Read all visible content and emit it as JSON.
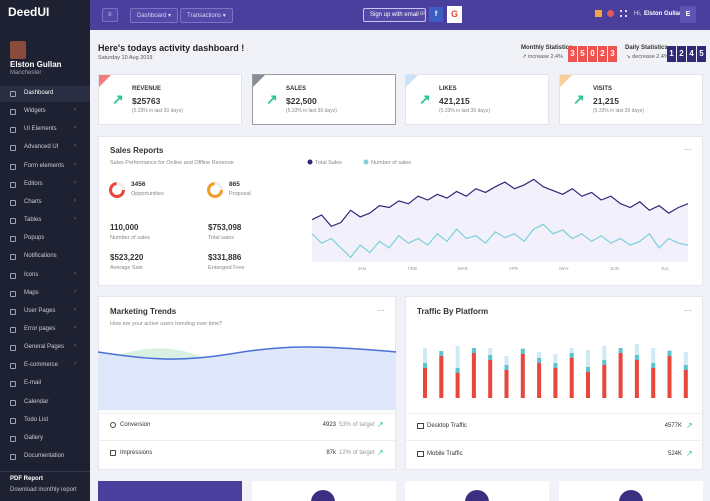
{
  "sidebar": {
    "brand": "DeedUI",
    "user": {
      "name": "Elston Gullan",
      "city": "Manchester"
    },
    "menu": [
      {
        "label": "Dashboard",
        "submenu": false
      },
      {
        "label": "Widgets",
        "submenu": true
      },
      {
        "label": "UI Elements",
        "submenu": true
      },
      {
        "label": "Advanced UI",
        "submenu": true
      },
      {
        "label": "Form elements",
        "submenu": true
      },
      {
        "label": "Editors",
        "submenu": true
      },
      {
        "label": "Charts",
        "submenu": true
      },
      {
        "label": "Tables",
        "submenu": true
      },
      {
        "label": "Popups",
        "submenu": false
      },
      {
        "label": "Notifications",
        "submenu": false
      },
      {
        "label": "Icons",
        "submenu": true
      },
      {
        "label": "Maps",
        "submenu": true
      },
      {
        "label": "User Pages",
        "submenu": true
      },
      {
        "label": "Error pages",
        "submenu": true
      },
      {
        "label": "General Pages",
        "submenu": true
      },
      {
        "label": "E-commerce",
        "submenu": true
      },
      {
        "label": "E-mail",
        "submenu": false
      },
      {
        "label": "Calendar",
        "submenu": false
      },
      {
        "label": "Todo List",
        "submenu": false
      },
      {
        "label": "Gallery",
        "submenu": false
      },
      {
        "label": "Documentation",
        "submenu": false
      }
    ],
    "footer": {
      "title": "PDF Report",
      "text": "Download monthly report"
    }
  },
  "topbar": {
    "menus": [
      "Dashboard",
      "Transactions"
    ],
    "signup": "Sign up with email",
    "or": "or",
    "facebook": "f",
    "google": "G",
    "greeting": "Hi,",
    "user": "Elston Gullan",
    "avatar": "E"
  },
  "header": {
    "title": "Here's todays activity dashboard !",
    "date": "Saturday 10 Aug 2019",
    "monthly": {
      "label": "Monthly Statistics",
      "change": "increase 2.4%",
      "digits": [
        3,
        5,
        0,
        2,
        3
      ]
    },
    "daily": {
      "label": "Daily Statistics",
      "change": "decrease 2.4%",
      "digits": [
        1,
        2,
        4,
        5
      ]
    }
  },
  "cards": [
    {
      "label": "REVENUE",
      "value": "$25763",
      "note": "(5.33% in last 30 days)",
      "color": "#f47c7c"
    },
    {
      "label": "SALES",
      "value": "$22,500",
      "note": "(5.33% in last 30 days)",
      "color": "#8a8d96"
    },
    {
      "label": "LIKES",
      "value": "421,215",
      "note": "(5.33% in last 30 days)",
      "color": "#c9e2f8"
    },
    {
      "label": "VISITS",
      "value": "21,215",
      "note": "(5.33% in last 30 days)",
      "color": "#f8cf95"
    }
  ],
  "sales_report": {
    "title": "Sales Reports",
    "subtitle": "Sales Performance for Online and Offline Revenue",
    "stats": [
      {
        "value": "3456",
        "label": "Opportunities"
      },
      {
        "value": "865",
        "label": "Proposal"
      },
      {
        "value": "110,000",
        "label": "Number of sales"
      },
      {
        "value": "$753,098",
        "label": "Total sales"
      },
      {
        "value": "$523,220",
        "label": "Average Sale"
      },
      {
        "value": "$331,886",
        "label": "Entanged Free"
      }
    ],
    "chart": {
      "categories": [
        "JAN",
        "FEB",
        "MAR",
        "APR",
        "MAY",
        "JUN",
        "JUL"
      ],
      "series": [
        {
          "name": "Total Sales",
          "color": "#2e2a78",
          "values": [
            45,
            50,
            38,
            42,
            55,
            48,
            52,
            60,
            58,
            65,
            62,
            70,
            66,
            72,
            68,
            75,
            70,
            78,
            74,
            80,
            85,
            78,
            82,
            88,
            80,
            76,
            72,
            78,
            70,
            74,
            66,
            70,
            62,
            58,
            64,
            55,
            60,
            52,
            58,
            62
          ]
        },
        {
          "name": "Number of sales",
          "color": "#7fd0d9",
          "values": [
            30,
            20,
            25,
            15,
            5,
            18,
            10,
            22,
            15,
            28,
            20,
            25,
            18,
            30,
            22,
            35,
            25,
            28,
            20,
            32,
            26,
            30,
            22,
            35,
            40,
            30,
            34,
            25,
            30,
            22,
            28,
            20,
            25,
            18,
            22,
            30,
            15,
            25,
            20,
            18
          ]
        }
      ]
    }
  },
  "marketing": {
    "title": "Marketing Trends",
    "subtitle": "How are your active users trending over time?",
    "rows": [
      {
        "label": "Conversion",
        "value": "4923",
        "target": "53% of target"
      },
      {
        "label": "Impressions",
        "value": "87k",
        "target": "12% of target"
      }
    ]
  },
  "traffic": {
    "title": "Traffic By Platform",
    "bars": [
      {
        "total": 50,
        "red": 30
      },
      {
        "total": 45,
        "red": 42
      },
      {
        "total": 52,
        "red": 25
      },
      {
        "total": 48,
        "red": 45
      },
      {
        "total": 50,
        "red": 38
      },
      {
        "total": 42,
        "red": 28
      },
      {
        "total": 50,
        "red": 44
      },
      {
        "total": 46,
        "red": 35
      },
      {
        "total": 44,
        "red": 30
      },
      {
        "total": 50,
        "red": 40
      },
      {
        "total": 48,
        "red": 26
      },
      {
        "total": 52,
        "red": 33
      },
      {
        "total": 44,
        "red": 45
      },
      {
        "total": 54,
        "red": 38
      },
      {
        "total": 50,
        "red": 30
      },
      {
        "total": 48,
        "red": 42
      },
      {
        "total": 46,
        "red": 28
      }
    ],
    "rows": [
      {
        "label": "Desktop Traffic",
        "value": "4577K"
      },
      {
        "label": "Mobile Traffic",
        "value": "524K"
      }
    ]
  }
}
